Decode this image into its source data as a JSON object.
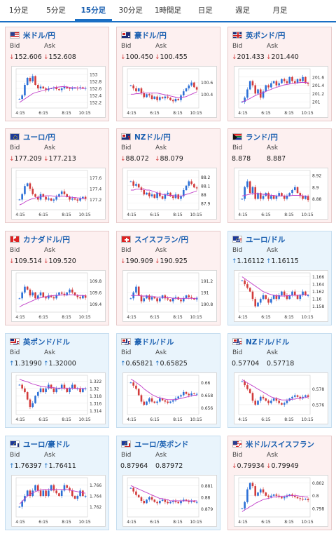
{
  "tabs": [
    {
      "label": "1分足",
      "active": false
    },
    {
      "label": "5分足",
      "active": false
    },
    {
      "label": "15分足",
      "active": true
    },
    {
      "label": "30分足",
      "active": false
    },
    {
      "label": "1時間足",
      "active": false
    },
    {
      "label": "日足",
      "active": false
    },
    {
      "label": "週足",
      "active": false
    },
    {
      "label": "月足",
      "active": false
    }
  ],
  "labels": {
    "bid": "Bid",
    "ask": "Ask"
  },
  "colors": {
    "accent": "#1a6fc4",
    "down": "#d23b3b",
    "up": "#1a6fc4",
    "card_pink": "#fdf0f0",
    "card_blue": "#e9f4fc",
    "ma_line": "#c03cc8"
  },
  "x_ticks": [
    "4:15",
    "6:15",
    "8:15",
    "10:15"
  ],
  "pairs": [
    {
      "name": "米ドル/円",
      "flag": "us",
      "bid": "152.606",
      "ask": "152.608",
      "direction": "down",
      "theme": "pink",
      "y_ticks": [
        "153",
        "152.8",
        "152.6",
        "152.4",
        "152.2"
      ],
      "y_range": [
        152.1,
        153.1
      ],
      "close": [
        152.3,
        152.4,
        152.7,
        152.9,
        152.8,
        152.95,
        152.7,
        152.6,
        152.65,
        152.6,
        152.55,
        152.6,
        152.6,
        152.62,
        152.58,
        152.55,
        152.6,
        152.65,
        152.6,
        152.58,
        152.6,
        152.62,
        152.6,
        152.63,
        152.6,
        152.61
      ],
      "ma": [
        152.2,
        152.25,
        152.3,
        152.35,
        152.4,
        152.45,
        152.48,
        152.5,
        152.52,
        152.54,
        152.56,
        152.58,
        152.6,
        152.62,
        152.63,
        152.64,
        152.65,
        152.65,
        152.64,
        152.63,
        152.62,
        152.62,
        152.61,
        152.61,
        152.6,
        152.6
      ]
    },
    {
      "name": "豪ドル/円",
      "flag": "au",
      "bid": "100.450",
      "ask": "100.455",
      "direction": "down",
      "theme": "pink",
      "y_ticks": [
        "100.6",
        "100.4"
      ],
      "y_range": [
        100.2,
        100.8
      ],
      "close": [
        100.55,
        100.5,
        100.45,
        100.5,
        100.42,
        100.35,
        100.4,
        100.38,
        100.32,
        100.36,
        100.3,
        100.35,
        100.33,
        100.36,
        100.34,
        100.3,
        100.28,
        100.32,
        100.3,
        100.38,
        100.45,
        100.5,
        100.55,
        100.6,
        100.52,
        100.48
      ],
      "ma": [
        100.4,
        100.4,
        100.41,
        100.41,
        100.42,
        100.42,
        100.42,
        100.42,
        100.42,
        100.42,
        100.42,
        100.41,
        100.4,
        100.39,
        100.38,
        100.37,
        100.36,
        100.35,
        100.34,
        100.34,
        100.35,
        100.36,
        100.38,
        100.4,
        100.42,
        100.44
      ]
    },
    {
      "name": "英ポンド/円",
      "flag": "uk",
      "bid": "201.433",
      "ask": "201.440",
      "direction": "down",
      "theme": "pink",
      "y_ticks": [
        "201.6",
        "201.4",
        "201.2",
        "201"
      ],
      "y_range": [
        200.9,
        201.75
      ],
      "close": [
        201.0,
        201.1,
        201.3,
        201.5,
        201.4,
        201.2,
        201.3,
        201.1,
        201.25,
        201.4,
        201.35,
        201.45,
        201.5,
        201.4,
        201.45,
        201.55,
        201.5,
        201.45,
        201.6,
        201.5,
        201.45,
        201.55,
        201.5,
        201.6,
        201.45,
        201.43
      ],
      "ma": [
        201.0,
        201.02,
        201.05,
        201.08,
        201.12,
        201.15,
        201.18,
        201.2,
        201.22,
        201.25,
        201.28,
        201.3,
        201.33,
        201.35,
        201.37,
        201.39,
        201.41,
        201.42,
        201.43,
        201.44,
        201.45,
        201.46,
        201.47,
        201.47,
        201.47,
        201.46
      ]
    },
    {
      "name": "ユーロ/円",
      "flag": "eu",
      "bid": "177.209",
      "ask": "177.213",
      "direction": "down",
      "theme": "pink",
      "y_ticks": [
        "177.6",
        "177.4",
        "177.2"
      ],
      "y_range": [
        177.05,
        177.7
      ],
      "close": [
        177.2,
        177.3,
        177.45,
        177.5,
        177.4,
        177.3,
        177.25,
        177.2,
        177.3,
        177.25,
        177.2,
        177.22,
        177.18,
        177.2,
        177.25,
        177.3,
        177.35,
        177.3,
        177.25,
        177.2,
        177.22,
        177.2,
        177.18,
        177.22,
        177.25,
        177.21
      ],
      "ma": [
        177.1,
        177.12,
        177.15,
        177.18,
        177.2,
        177.22,
        177.23,
        177.24,
        177.25,
        177.26,
        177.27,
        177.27,
        177.27,
        177.26,
        177.26,
        177.26,
        177.26,
        177.26,
        177.25,
        177.25,
        177.24,
        177.24,
        177.23,
        177.23,
        177.22,
        177.22
      ]
    },
    {
      "name": "NZドル/円",
      "flag": "nz",
      "bid": "88.072",
      "ask": "88.079",
      "direction": "down",
      "theme": "pink",
      "y_ticks": [
        "88.2",
        "88.1",
        "88",
        "87.9"
      ],
      "y_range": [
        87.85,
        88.25
      ],
      "close": [
        88.15,
        88.1,
        88.12,
        88.08,
        88.05,
        88.0,
        88.02,
        87.98,
        88.0,
        87.96,
        88.02,
        87.98,
        87.95,
        88.0,
        88.02,
        87.98,
        87.96,
        88.0,
        87.95,
        87.98,
        88.05,
        88.1,
        88.15,
        88.12,
        88.08,
        88.07
      ],
      "ma": [
        88.05,
        88.05,
        88.06,
        88.06,
        88.06,
        88.06,
        88.05,
        88.05,
        88.04,
        88.03,
        88.02,
        88.01,
        88.0,
        88.0,
        87.99,
        87.99,
        87.99,
        87.98,
        87.98,
        87.98,
        87.99,
        88.0,
        88.01,
        88.02,
        88.03,
        88.04
      ]
    },
    {
      "name": "ランド/円",
      "flag": "za",
      "bid": "8.878",
      "ask": "8.887",
      "direction": "none",
      "theme": "pink",
      "y_ticks": [
        "8.92",
        "8.9",
        "8.88"
      ],
      "y_range": [
        8.865,
        8.925
      ],
      "close": [
        8.88,
        8.9,
        8.91,
        8.89,
        8.9,
        8.88,
        8.89,
        8.88,
        8.885,
        8.89,
        8.88,
        8.885,
        8.88,
        8.885,
        8.89,
        8.885,
        8.88,
        8.885,
        8.89,
        8.895,
        8.9,
        8.89,
        8.885,
        8.88,
        8.885,
        8.878
      ],
      "ma": [
        8.885,
        8.886,
        8.887,
        8.888,
        8.889,
        8.889,
        8.889,
        8.888,
        8.888,
        8.887,
        8.887,
        8.886,
        8.886,
        8.885,
        8.885,
        8.885,
        8.885,
        8.885,
        8.885,
        8.886,
        8.886,
        8.886,
        8.886,
        8.885,
        8.885,
        8.884
      ]
    },
    {
      "name": "カナダドル/円",
      "flag": "ca",
      "bid": "109.514",
      "ask": "109.520",
      "direction": "down",
      "theme": "pink",
      "y_ticks": [
        "109.8",
        "109.6",
        "109.4"
      ],
      "y_range": [
        109.3,
        109.9
      ],
      "close": [
        109.5,
        109.6,
        109.7,
        109.65,
        109.55,
        109.6,
        109.5,
        109.55,
        109.6,
        109.52,
        109.5,
        109.55,
        109.52,
        109.5,
        109.56,
        109.6,
        109.58,
        109.55,
        109.6,
        109.65,
        109.6,
        109.55,
        109.52,
        109.5,
        109.55,
        109.51
      ],
      "ma": [
        109.35,
        109.38,
        109.4,
        109.42,
        109.44,
        109.46,
        109.48,
        109.5,
        109.51,
        109.52,
        109.53,
        109.54,
        109.54,
        109.55,
        109.55,
        109.55,
        109.56,
        109.56,
        109.56,
        109.56,
        109.56,
        109.56,
        109.55,
        109.55,
        109.55,
        109.54
      ]
    },
    {
      "name": "スイスフラン/円",
      "flag": "ch",
      "bid": "190.909",
      "ask": "190.925",
      "direction": "down",
      "theme": "pink",
      "y_ticks": [
        "191.2",
        "191",
        "190.8"
      ],
      "y_range": [
        190.7,
        191.3
      ],
      "close": [
        190.9,
        191.0,
        191.1,
        190.95,
        190.85,
        190.9,
        190.95,
        190.88,
        190.92,
        190.9,
        190.85,
        190.9,
        190.95,
        190.9,
        190.88,
        190.85,
        190.9,
        190.92,
        190.88,
        190.85,
        190.9,
        190.95,
        190.92,
        190.9,
        190.88,
        190.91
      ],
      "ma": [
        190.95,
        190.95,
        190.95,
        190.95,
        190.94,
        190.94,
        190.94,
        190.93,
        190.93,
        190.93,
        190.92,
        190.92,
        190.92,
        190.91,
        190.91,
        190.91,
        190.9,
        190.9,
        190.9,
        190.9,
        190.9,
        190.9,
        190.9,
        190.9,
        190.9,
        190.9
      ]
    },
    {
      "name": "ユーロ/ドル",
      "flag": "euus",
      "bid": "1.16112",
      "ask": "1.16115",
      "direction": "up",
      "theme": "blue",
      "y_ticks": [
        "1.166",
        "1.164",
        "1.162",
        "1.16",
        "1.158"
      ],
      "y_range": [
        1.157,
        1.1665
      ],
      "close": [
        1.165,
        1.164,
        1.163,
        1.162,
        1.16,
        1.158,
        1.159,
        1.16,
        1.161,
        1.16,
        1.159,
        1.16,
        1.161,
        1.16,
        1.161,
        1.162,
        1.161,
        1.16,
        1.161,
        1.162,
        1.161,
        1.16,
        1.161,
        1.162,
        1.161,
        1.161
      ],
      "ma": [
        1.166,
        1.1655,
        1.165,
        1.1645,
        1.164,
        1.1635,
        1.163,
        1.1625,
        1.162,
        1.1617,
        1.1614,
        1.1612,
        1.161,
        1.1609,
        1.1608,
        1.1608,
        1.1608,
        1.1609,
        1.1609,
        1.161,
        1.161,
        1.161,
        1.161,
        1.1611,
        1.1611,
        1.1611
      ]
    },
    {
      "name": "英ポンド/ドル",
      "flag": "ukus",
      "bid": "1.31990",
      "ask": "1.32000",
      "direction": "up",
      "theme": "blue",
      "y_ticks": [
        "1.322",
        "1.32",
        "1.318",
        "1.316",
        "1.314"
      ],
      "y_range": [
        1.3135,
        1.323
      ],
      "close": [
        1.321,
        1.32,
        1.319,
        1.317,
        1.315,
        1.316,
        1.318,
        1.319,
        1.32,
        1.319,
        1.32,
        1.321,
        1.32,
        1.319,
        1.32,
        1.32,
        1.321,
        1.32,
        1.319,
        1.32,
        1.321,
        1.32,
        1.32,
        1.319,
        1.32,
        1.32
      ],
      "ma": [
        1.3225,
        1.3222,
        1.322,
        1.3218,
        1.3215,
        1.3212,
        1.321,
        1.3208,
        1.3206,
        1.3205,
        1.3204,
        1.3203,
        1.3202,
        1.3202,
        1.3201,
        1.3201,
        1.3201,
        1.3201,
        1.3201,
        1.3201,
        1.3201,
        1.32,
        1.32,
        1.32,
        1.32,
        1.32
      ]
    },
    {
      "name": "豪ドル/ドル",
      "flag": "auus",
      "bid": "0.65821",
      "ask": "0.65825",
      "direction": "up",
      "theme": "blue",
      "y_ticks": [
        "0.66",
        "0.658",
        "0.656"
      ],
      "y_range": [
        0.6553,
        0.6608
      ],
      "close": [
        0.66,
        0.6595,
        0.659,
        0.658,
        0.657,
        0.6565,
        0.657,
        0.6575,
        0.657,
        0.6568,
        0.657,
        0.6575,
        0.6572,
        0.657,
        0.6568,
        0.657,
        0.6572,
        0.6575,
        0.6578,
        0.658,
        0.6585,
        0.6582,
        0.658,
        0.6583,
        0.6582,
        0.6582
      ],
      "ma": [
        0.6605,
        0.6603,
        0.66,
        0.6597,
        0.6594,
        0.659,
        0.6587,
        0.6584,
        0.6581,
        0.6579,
        0.6577,
        0.6576,
        0.6575,
        0.6574,
        0.6573,
        0.6573,
        0.6573,
        0.6573,
        0.6574,
        0.6575,
        0.6576,
        0.6577,
        0.6578,
        0.6579,
        0.658,
        0.658
      ]
    },
    {
      "name": "NZドル/ドル",
      "flag": "nzus",
      "bid": "0.57704",
      "ask": "0.57718",
      "direction": "none",
      "theme": "blue",
      "y_ticks": [
        "0.578",
        "0.576"
      ],
      "y_range": [
        0.575,
        0.5795
      ],
      "close": [
        0.579,
        0.5785,
        0.578,
        0.5775,
        0.5765,
        0.576,
        0.5765,
        0.577,
        0.5768,
        0.5765,
        0.5762,
        0.5765,
        0.5768,
        0.5765,
        0.5762,
        0.576,
        0.5762,
        0.5765,
        0.5768,
        0.577,
        0.5772,
        0.577,
        0.5768,
        0.577,
        0.5772,
        0.577
      ],
      "ma": [
        0.5792,
        0.579,
        0.5788,
        0.5786,
        0.5784,
        0.5782,
        0.578,
        0.5778,
        0.5776,
        0.5774,
        0.5772,
        0.577,
        0.5769,
        0.5768,
        0.5767,
        0.5766,
        0.5766,
        0.5766,
        0.5766,
        0.5767,
        0.5767,
        0.5768,
        0.5768,
        0.5769,
        0.5769,
        0.577
      ]
    },
    {
      "name": "ユーロ/豪ドル",
      "flag": "euau",
      "bid": "1.76397",
      "ask": "1.76411",
      "direction": "up",
      "theme": "blue",
      "y_ticks": [
        "1.766",
        "1.764",
        "1.762"
      ],
      "y_range": [
        1.7605,
        1.767
      ],
      "close": [
        1.762,
        1.763,
        1.764,
        1.765,
        1.764,
        1.765,
        1.766,
        1.765,
        1.764,
        1.765,
        1.764,
        1.765,
        1.766,
        1.765,
        1.7645,
        1.764,
        1.765,
        1.766,
        1.7655,
        1.765,
        1.764,
        1.7635,
        1.764,
        1.765,
        1.764,
        1.764
      ],
      "ma": [
        1.7625,
        1.763,
        1.7635,
        1.764,
        1.7643,
        1.7646,
        1.7648,
        1.765,
        1.7651,
        1.7652,
        1.7652,
        1.7652,
        1.7652,
        1.7652,
        1.7652,
        1.7652,
        1.7652,
        1.7652,
        1.7652,
        1.7651,
        1.765,
        1.7649,
        1.7648,
        1.7647,
        1.7646,
        1.7645
      ]
    },
    {
      "name": "ユーロ/英ポンド",
      "flag": "euuk",
      "bid": "0.87964",
      "ask": "0.87972",
      "direction": "none",
      "theme": "blue",
      "y_ticks": [
        "0.881",
        "0.88",
        "0.879"
      ],
      "y_range": [
        0.8785,
        0.8815
      ],
      "close": [
        0.8808,
        0.8805,
        0.8802,
        0.88,
        0.8797,
        0.8795,
        0.8798,
        0.88,
        0.8798,
        0.8796,
        0.8795,
        0.8797,
        0.8798,
        0.8796,
        0.8795,
        0.8796,
        0.8797,
        0.8796,
        0.8795,
        0.8797,
        0.8798,
        0.8797,
        0.8796,
        0.8797,
        0.8796,
        0.8796
      ],
      "ma": [
        0.881,
        0.8809,
        0.8808,
        0.8807,
        0.8806,
        0.8805,
        0.8804,
        0.8803,
        0.8802,
        0.8801,
        0.88,
        0.8799,
        0.8799,
        0.8798,
        0.8798,
        0.8797,
        0.8797,
        0.8797,
        0.8797,
        0.8797,
        0.8797,
        0.8797,
        0.8797,
        0.8797,
        0.8797,
        0.8797
      ]
    },
    {
      "name": "米ドル/スイスフラン",
      "flag": "usch",
      "bid": "0.79934",
      "ask": "0.79949",
      "direction": "down",
      "theme": "pink",
      "y_ticks": [
        "0.802",
        "0.8",
        "0.798"
      ],
      "y_range": [
        0.797,
        0.8025
      ],
      "close": [
        0.798,
        0.799,
        0.801,
        0.802,
        0.8015,
        0.8,
        0.8005,
        0.801,
        0.8005,
        0.8,
        0.7998,
        0.8,
        0.8002,
        0.8,
        0.7998,
        0.7996,
        0.7998,
        0.8,
        0.8002,
        0.8,
        0.7998,
        0.7996,
        0.7995,
        0.7994,
        0.7995,
        0.7993
      ],
      "ma": [
        0.7975,
        0.7978,
        0.798,
        0.7983,
        0.7985,
        0.7988,
        0.799,
        0.7992,
        0.7994,
        0.7995,
        0.7996,
        0.7997,
        0.7998,
        0.7998,
        0.7999,
        0.7999,
        0.7999,
        0.8,
        0.8,
        0.8,
        0.8,
        0.8,
        0.7999,
        0.7999,
        0.7998,
        0.7998
      ]
    }
  ]
}
